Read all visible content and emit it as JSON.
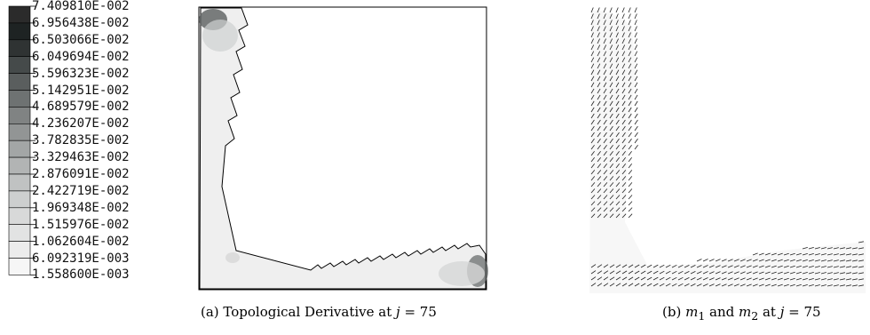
{
  "legend": {
    "labels": [
      "7.409810E-002",
      "6.956438E-002",
      "6.503066E-002",
      "6.049694E-002",
      "5.596323E-002",
      "5.142951E-002",
      "4.689579E-002",
      "4.236207E-002",
      "3.782835E-002",
      "3.329463E-002",
      "2.876091E-002",
      "2.422719E-002",
      "1.969348E-002",
      "1.515976E-002",
      "1.062604E-002",
      "6.092319E-003",
      "1.558600E-003"
    ],
    "colors": [
      "#2b2b2b",
      "#1e2323",
      "#2f3333",
      "#454a4a",
      "#5a5e5e",
      "#6e7272",
      "#808383",
      "#929595",
      "#a3a6a6",
      "#b2b4b4",
      "#c0c2c2",
      "#cdcfcf",
      "#d8d9d9",
      "#e2e3e3",
      "#ececec",
      "#f6f6f6"
    ]
  },
  "captions": {
    "a_prefix": "(a)  Topological Derivative at ",
    "a_var": "j",
    "a_eq": " = 75",
    "b_prefix": "(b) ",
    "b_m": "m",
    "b_sub1": "1",
    "b_and": " and ",
    "b_sub2": "2",
    "b_at": " at ",
    "b_var": "j",
    "b_eq": " = 75"
  }
}
